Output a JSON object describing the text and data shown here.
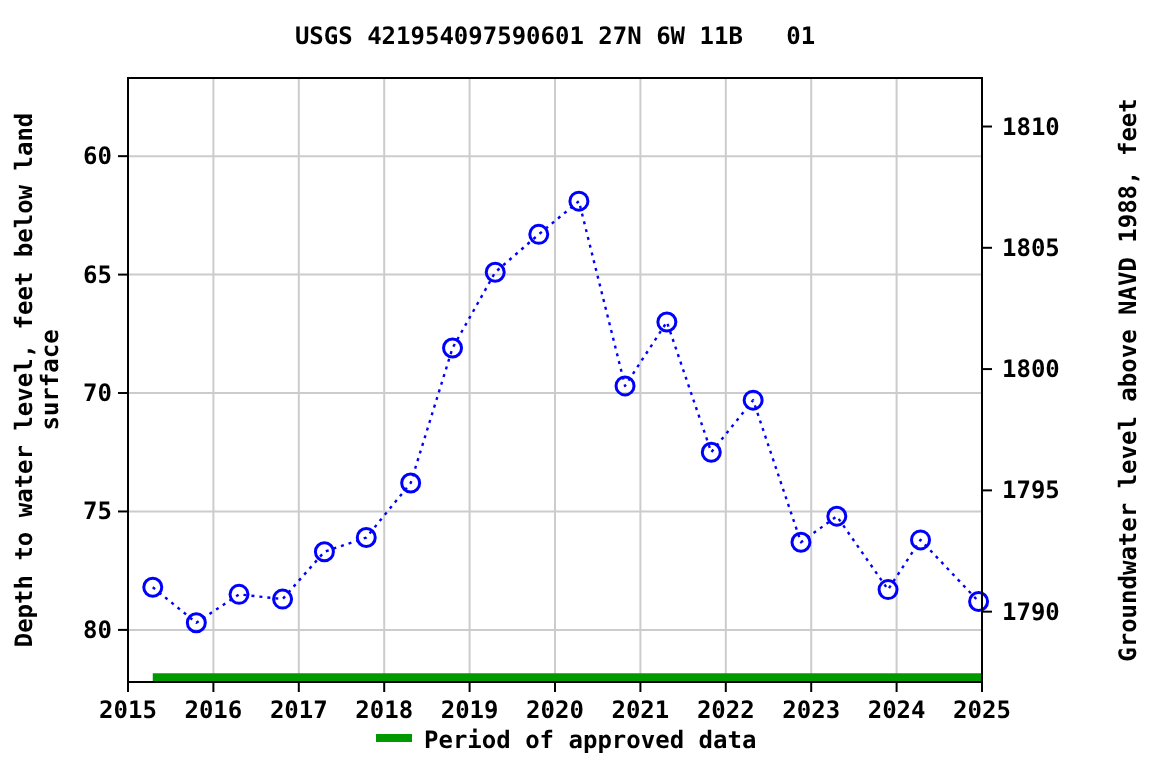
{
  "chart_data": {
    "type": "line",
    "title": "USGS 421954097590601 27N 6W 11B   01",
    "ylabel": "Depth to water level, feet below land\nsurface",
    "y2label": "Groundwater level above NAVD 1988, feet",
    "x": [
      2015.29,
      2015.8,
      2016.3,
      2016.81,
      2017.3,
      2017.79,
      2018.31,
      2018.8,
      2019.3,
      2019.81,
      2020.28,
      2020.82,
      2021.31,
      2021.83,
      2022.32,
      2022.88,
      2023.3,
      2023.9,
      2024.28,
      2024.96
    ],
    "series": [
      {
        "color": "#0000ff",
        "values": [
          78.2,
          79.7,
          78.5,
          78.7,
          76.7,
          76.1,
          73.8,
          68.1,
          64.9,
          63.3,
          61.9,
          69.7,
          67.0,
          72.5,
          70.3,
          76.3,
          75.2,
          78.3,
          76.2,
          78.8
        ]
      },
      {
        "name": "Period of approved data",
        "color": "#009900",
        "x": [
          2015.29,
          2025
        ],
        "values": [
          82.0,
          82.0
        ],
        "marker": "none",
        "line_style": "solid"
      }
    ],
    "xlim": [
      2015,
      2025
    ],
    "xticks": [
      2015,
      2016,
      2017,
      2018,
      2019,
      2020,
      2021,
      2022,
      2023,
      2024,
      2025
    ],
    "ylim": [
      82.2,
      56.7
    ],
    "yticks": [
      60,
      65,
      70,
      75,
      80
    ],
    "y2lim": [
      1787.1,
      1812.0
    ],
    "y2ticks": [
      1790,
      1795,
      1800,
      1805,
      1810
    ],
    "grid": true,
    "legend": "bottom",
    "marker": "circle",
    "line_style": "dotted"
  }
}
